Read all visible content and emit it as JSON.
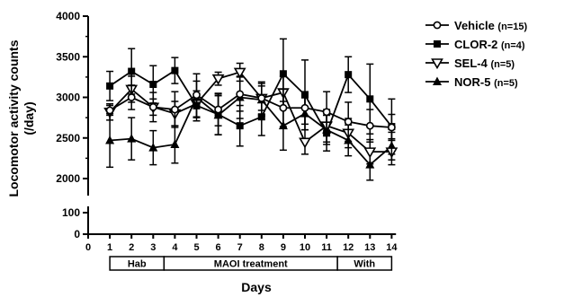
{
  "chart_data": {
    "type": "line",
    "xlabel": "Days",
    "ylabel": "Locomotor activity counts",
    "ylabel_unit": "(/day)",
    "x": [
      1,
      2,
      3,
      4,
      5,
      6,
      7,
      8,
      9,
      10,
      11,
      12,
      13,
      14
    ],
    "xticks": [
      "0",
      "1",
      "2",
      "3",
      "4",
      "5",
      "6",
      "7",
      "8",
      "9",
      "10",
      "11",
      "12",
      "13",
      "14"
    ],
    "xlim": [
      0,
      14.5
    ],
    "y_axis_break": true,
    "yticks_lower": [
      "0",
      "100"
    ],
    "yticks_upper": [
      "2000",
      "2500",
      "3000",
      "3500",
      "4000"
    ],
    "ylim_lower": [
      0,
      100
    ],
    "ylim_upper": [
      1650,
      4000
    ],
    "phases": [
      {
        "label": "Hab",
        "from": 1,
        "to": 3.5
      },
      {
        "label": "MAOI treatment",
        "from": 3.5,
        "to": 11.5
      },
      {
        "label": "With",
        "from": 11.5,
        "to": 14
      }
    ],
    "series": [
      {
        "name": "Vehicle",
        "n": "(n=15)",
        "marker": "open-circle",
        "values": [
          2840,
          3000,
          2880,
          2850,
          3030,
          2850,
          3040,
          2990,
          2870,
          2870,
          2820,
          2700,
          2650,
          2630
        ],
        "errors": [
          60,
          150,
          100,
          220,
          170,
          200,
          210,
          200,
          230,
          200,
          250,
          240,
          200,
          160
        ]
      },
      {
        "name": "CLOR-2",
        "n": "(n=4)",
        "marker": "filled-square",
        "values": [
          3140,
          3320,
          3160,
          3330,
          2900,
          2790,
          2650,
          2760,
          3290,
          3030,
          2560,
          3280,
          2980,
          2640
        ],
        "errors": [
          180,
          280,
          230,
          160,
          150,
          250,
          250,
          230,
          430,
          430,
          220,
          220,
          430,
          340
        ]
      },
      {
        "name": "SEL-4",
        "n": "(n=5)",
        "marker": "open-triangle-down",
        "values": [
          2820,
          3100,
          2880,
          2800,
          2920,
          3230,
          3310,
          2990,
          3060,
          2450,
          2650,
          2560,
          2330,
          2330
        ],
        "errors": [
          100,
          160,
          180,
          150,
          160,
          80,
          110,
          150,
          200,
          150,
          200,
          180,
          150,
          160
        ]
      },
      {
        "name": "NOR-5",
        "n": "(n=5)",
        "marker": "filled-triangle-up",
        "values": [
          2470,
          2490,
          2380,
          2420,
          3000,
          2780,
          3000,
          2970,
          2650,
          2800,
          2600,
          2470,
          2170,
          2400
        ],
        "errors": [
          330,
          260,
          210,
          230,
          290,
          240,
          260,
          200,
          300,
          200,
          180,
          190,
          190,
          170
        ]
      }
    ]
  }
}
